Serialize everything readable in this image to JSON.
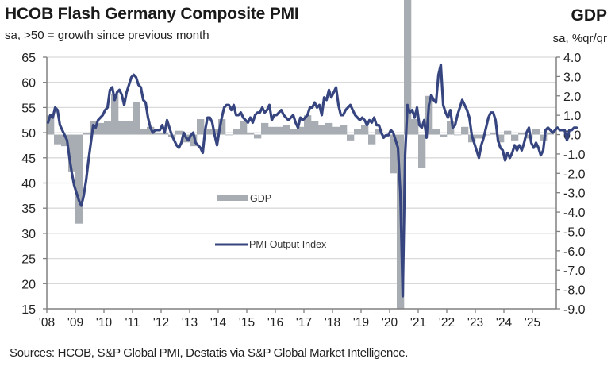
{
  "header": {
    "title": "HCOB Flash Germany Composite PMI",
    "subtitle": "sa, >50 = growth since previous month",
    "right_title": "GDP",
    "right_subtitle": "sa, %qr/qr"
  },
  "footer": {
    "source": "Sources: HCOB, S&P Global PMI, Destatis via S&P Global Market Intelligence."
  },
  "colors": {
    "pmi_line": "#36457f",
    "gdp_bar": "#a8adb3",
    "grid": "#d9d9d9",
    "axis": "#808080"
  },
  "chart_data": {
    "type": "bar+line",
    "title": "HCOB Flash Germany Composite PMI",
    "subtitle": "sa, >50 = growth since previous month",
    "left_axis": {
      "label": "sa, >50 = growth since previous month",
      "ylim": [
        15,
        65
      ],
      "ticks": [
        "65",
        "60",
        "55",
        "50",
        "45",
        "40",
        "35",
        "30",
        "25",
        "20",
        "15"
      ],
      "tick_values": [
        65,
        60,
        55,
        50,
        45,
        40,
        35,
        30,
        25,
        20,
        15
      ]
    },
    "right_axis": {
      "label": "GDP sa, %qr/qr",
      "ylim": [
        -9.0,
        4.0
      ],
      "ticks": [
        "4.0",
        "3.0",
        "2.0",
        "1.0",
        "0.0",
        "-1.0",
        "-2.0",
        "-3.0",
        "-4.0",
        "-5.0",
        "-6.0",
        "-7.0",
        "-8.0",
        "-9.0"
      ],
      "tick_values": [
        4,
        3,
        2,
        1,
        0,
        -1,
        -2,
        -3,
        -4,
        -5,
        -6,
        -7,
        -8,
        -9
      ]
    },
    "x_axis": {
      "labels": [
        "'08",
        "'09",
        "'10",
        "'11",
        "'12",
        "'13",
        "'14",
        "'15",
        "'16",
        "'17",
        "'18",
        "'19",
        "'20",
        "'21",
        "'22",
        "'23",
        "'24",
        "'25"
      ],
      "start_year": 2008,
      "end_year": 2025.75
    },
    "grid": true,
    "legend": [
      {
        "name": "GDP",
        "type": "bar",
        "position": "center"
      },
      {
        "name": "PMI Output Index",
        "type": "line",
        "position": "center"
      }
    ],
    "series": [
      {
        "name": "GDP",
        "axis": "right",
        "frequency": "quarterly",
        "start": "2008Q1",
        "values": [
          1.0,
          -0.5,
          -0.6,
          -1.9,
          -4.6,
          0.1,
          0.7,
          0.6,
          0.7,
          2.1,
          0.7,
          0.7,
          1.7,
          0.3,
          0.4,
          0.1,
          0.1,
          -0.1,
          0.2,
          -0.4,
          -0.6,
          0.8,
          0.3,
          0.3,
          0.8,
          0.0,
          0.3,
          0.7,
          0.1,
          -0.2,
          0.6,
          0.4,
          0.4,
          0.5,
          0.3,
          0.4,
          1.0,
          0.7,
          0.5,
          0.6,
          0.4,
          0.5,
          -0.3,
          0.3,
          0.5,
          -0.5,
          0.3,
          0.0,
          -2.0,
          -9.0,
          8.0,
          0.8,
          -1.7,
          2.0,
          0.3,
          -0.1,
          0.7,
          0.0,
          0.4,
          -0.4,
          -0.2,
          0.0,
          0.1,
          -0.4,
          0.2,
          -0.3,
          0.1,
          -0.2,
          0.3,
          -0.3,
          0.1
        ]
      },
      {
        "name": "PMI Output Index",
        "axis": "left",
        "frequency": "monthly",
        "start": "2008-01",
        "values": [
          52.0,
          53.5,
          53.0,
          55.0,
          54.5,
          51.5,
          50.5,
          49.5,
          48.5,
          45.0,
          42.0,
          39.5,
          38.0,
          36.5,
          35.5,
          37.5,
          40.5,
          44.5,
          48.0,
          51.5,
          51.0,
          52.5,
          53.0,
          53.5,
          54.5,
          55.0,
          58.5,
          59.0,
          56.5,
          58.0,
          58.5,
          57.5,
          55.5,
          58.0,
          59.5,
          61.0,
          61.5,
          61.0,
          59.5,
          59.0,
          56.5,
          56.0,
          53.0,
          51.0,
          50.0,
          50.5,
          50.5,
          50.5,
          51.5,
          50.0,
          52.5,
          51.0,
          49.5,
          48.5,
          47.5,
          47.0,
          48.0,
          50.0,
          49.0,
          48.5,
          49.5,
          50.0,
          48.0,
          47.5,
          47.0,
          46.0,
          50.5,
          53.0,
          53.0,
          52.0,
          49.5,
          47.5,
          50.5,
          53.0,
          55.0,
          55.5,
          55.5,
          54.5,
          55.5,
          53.5,
          53.5,
          54.0,
          53.0,
          52.5,
          52.0,
          53.0,
          52.0,
          53.5,
          54.0,
          54.0,
          55.0,
          54.0,
          54.5,
          55.5,
          52.5,
          53.5,
          53.5,
          54.0,
          54.5,
          53.5,
          53.0,
          52.5,
          53.0,
          53.5,
          52.0,
          51.0,
          53.0,
          52.5,
          53.0,
          53.5,
          55.0,
          55.0,
          56.0,
          55.0,
          55.5,
          53.5,
          57.0,
          56.5,
          58.5,
          57.0,
          58.0,
          59.0,
          55.5,
          53.5,
          53.5,
          54.5,
          55.0,
          55.5,
          54.5,
          53.5,
          53.0,
          52.5,
          53.0,
          52.5,
          51.5,
          52.5,
          52.0,
          53.0,
          51.5,
          51.5,
          50.0,
          49.0,
          49.5,
          49.5,
          50.5,
          50.0,
          48.5,
          47.0,
          38.0,
          17.5,
          45.5,
          55.5,
          54.0,
          54.5,
          53.0,
          55.0,
          51.5,
          51.0,
          52.5,
          49.0,
          55.5,
          57.5,
          56.5,
          56.0,
          61.5,
          63.5,
          55.5,
          54.0,
          53.0,
          54.5,
          51.0,
          51.5,
          53.5,
          55.0,
          56.5,
          55.5,
          54.5,
          53.0,
          49.5,
          48.0,
          46.5,
          45.0,
          47.5,
          49.0,
          51.0,
          53.0,
          54.0,
          54.0,
          52.5,
          48.5,
          47.0,
          46.5,
          44.5,
          46.0,
          45.0,
          46.0,
          47.5,
          46.5,
          47.5,
          46.5,
          48.0,
          50.0,
          51.0,
          48.0,
          47.0,
          48.0,
          47.0,
          45.5,
          46.5,
          50.5,
          51.0,
          50.5,
          50.0,
          50.5,
          51.0,
          50.5,
          50.5,
          50.5,
          48.5,
          50.5,
          50.5,
          51.0,
          51.0
        ]
      }
    ]
  }
}
